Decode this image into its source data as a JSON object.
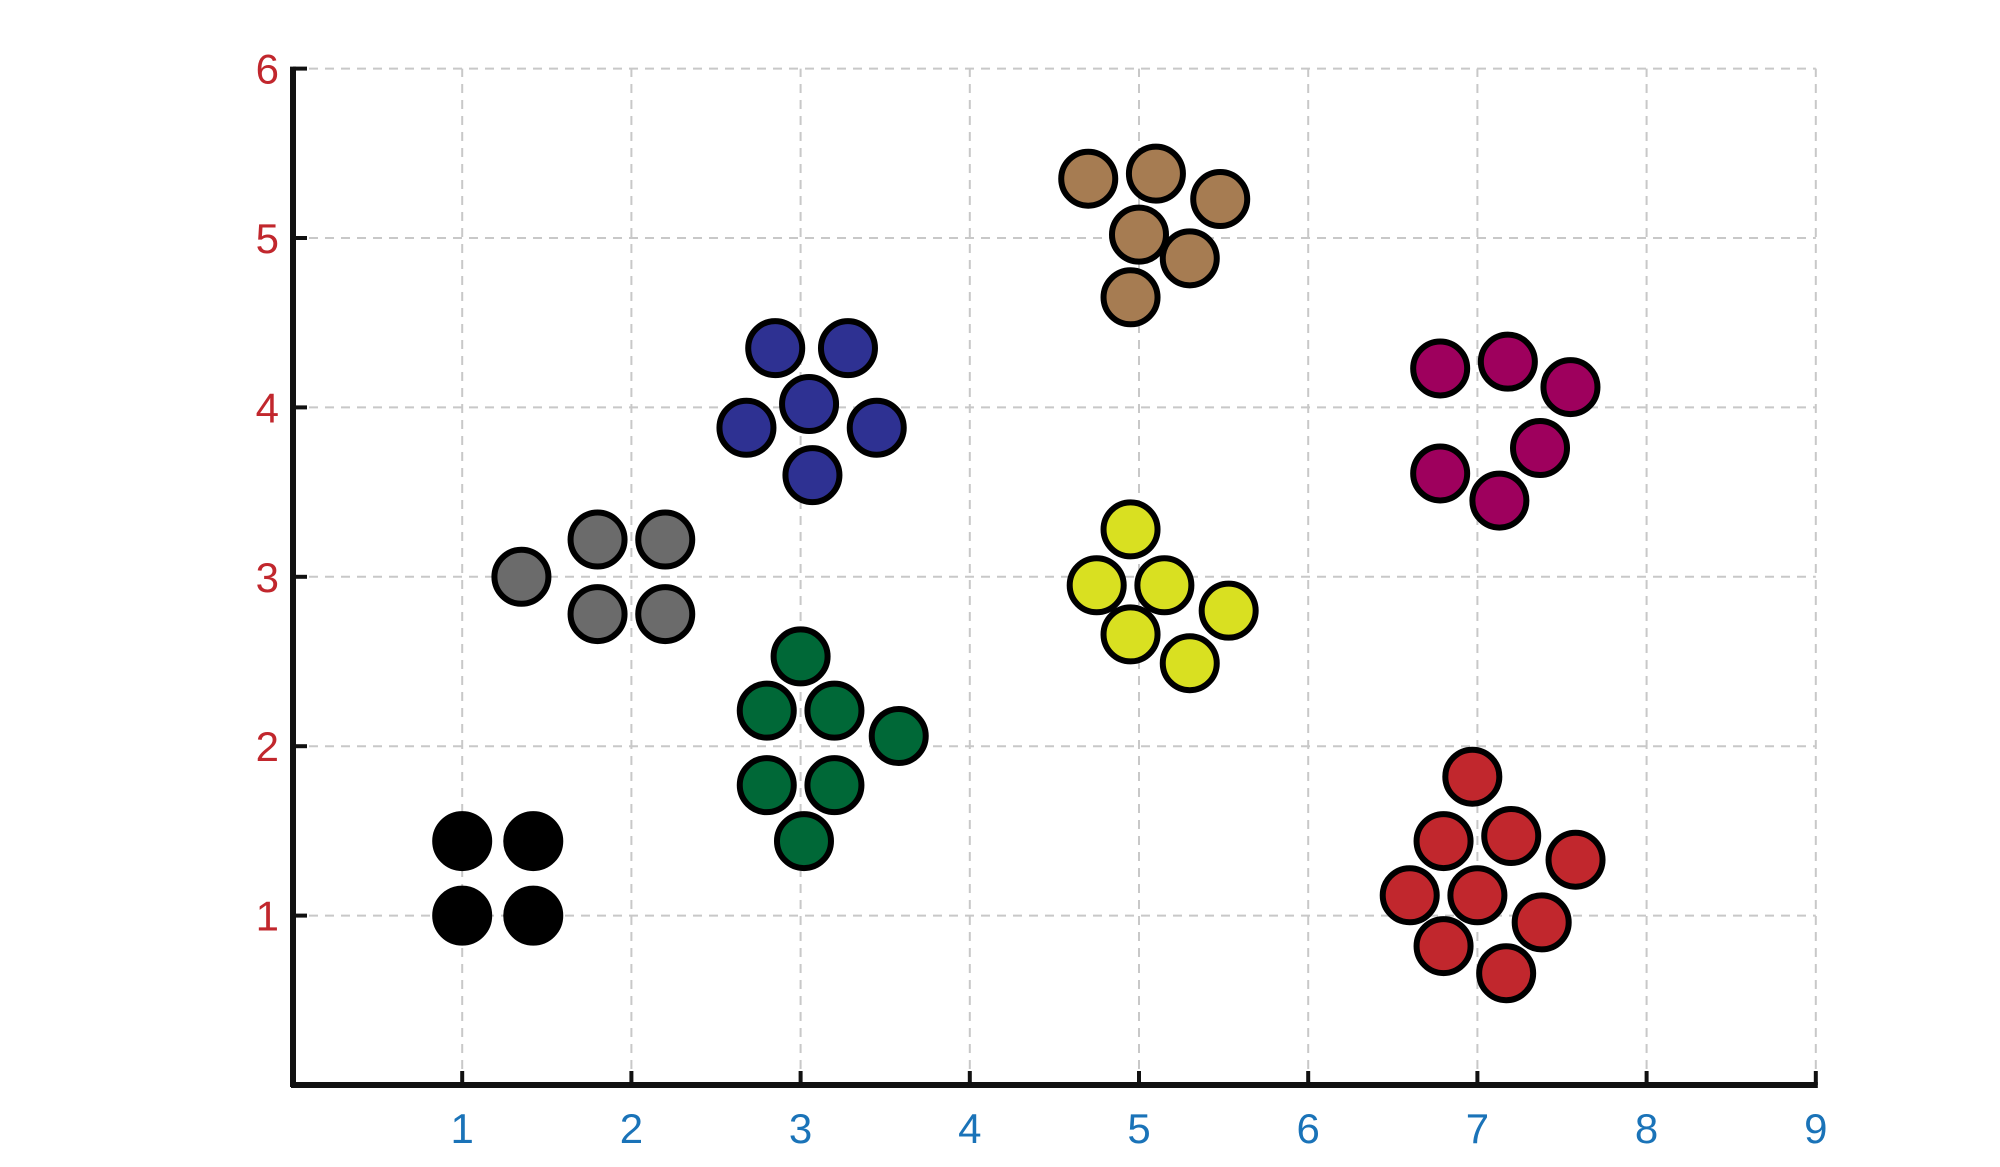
{
  "chart_data": {
    "type": "scatter",
    "title": "",
    "xlabel": "",
    "ylabel": "",
    "xlim": [
      0,
      9
    ],
    "ylim": [
      0,
      6
    ],
    "x_ticks": [
      "1",
      "2",
      "3",
      "4",
      "5",
      "6",
      "7",
      "8",
      "9"
    ],
    "y_ticks": [
      "1",
      "2",
      "3",
      "4",
      "5",
      "6"
    ],
    "grid": true,
    "legend": false,
    "colors": {
      "x_tick_labels": "#1a73b8",
      "y_tick_labels": "#c1272d",
      "axis": "#111111",
      "grid": "#c8c8c8",
      "marker_edge": "#000000"
    },
    "series": [
      {
        "color": "#000000",
        "points": [
          [
            1.0,
            1.44
          ],
          [
            1.42,
            1.44
          ],
          [
            1.0,
            1.0
          ],
          [
            1.42,
            1.0
          ]
        ]
      },
      {
        "color": "#6b6b6b",
        "points": [
          [
            1.35,
            3.0
          ],
          [
            1.8,
            3.22
          ],
          [
            2.2,
            3.22
          ],
          [
            1.8,
            2.78
          ],
          [
            2.2,
            2.78
          ]
        ]
      },
      {
        "color": "#2e3192",
        "points": [
          [
            2.85,
            4.35
          ],
          [
            3.28,
            4.35
          ],
          [
            3.05,
            4.02
          ],
          [
            2.68,
            3.88
          ],
          [
            3.45,
            3.88
          ],
          [
            3.07,
            3.6
          ]
        ]
      },
      {
        "color": "#006837",
        "points": [
          [
            3.0,
            2.53
          ],
          [
            2.8,
            2.21
          ],
          [
            3.2,
            2.21
          ],
          [
            3.58,
            2.06
          ],
          [
            2.8,
            1.77
          ],
          [
            3.2,
            1.77
          ],
          [
            3.02,
            1.44
          ]
        ]
      },
      {
        "color": "#a67c52",
        "points": [
          [
            4.7,
            5.35
          ],
          [
            5.1,
            5.38
          ],
          [
            5.48,
            5.23
          ],
          [
            5.0,
            5.02
          ],
          [
            5.3,
            4.88
          ],
          [
            4.95,
            4.65
          ]
        ]
      },
      {
        "color": "#d9e021",
        "points": [
          [
            4.95,
            3.28
          ],
          [
            4.75,
            2.95
          ],
          [
            5.15,
            2.95
          ],
          [
            5.53,
            2.8
          ],
          [
            4.95,
            2.66
          ],
          [
            5.3,
            2.49
          ]
        ]
      },
      {
        "color": "#9e005d",
        "points": [
          [
            6.78,
            4.23
          ],
          [
            7.18,
            4.27
          ],
          [
            7.55,
            4.12
          ],
          [
            7.37,
            3.76
          ],
          [
            6.78,
            3.61
          ],
          [
            7.13,
            3.45
          ]
        ]
      },
      {
        "color": "#c1272d",
        "points": [
          [
            6.97,
            1.82
          ],
          [
            6.8,
            1.44
          ],
          [
            7.2,
            1.47
          ],
          [
            7.58,
            1.33
          ],
          [
            6.6,
            1.12
          ],
          [
            7.0,
            1.12
          ],
          [
            7.38,
            0.96
          ],
          [
            6.8,
            0.82
          ],
          [
            7.17,
            0.66
          ]
        ]
      }
    ]
  }
}
